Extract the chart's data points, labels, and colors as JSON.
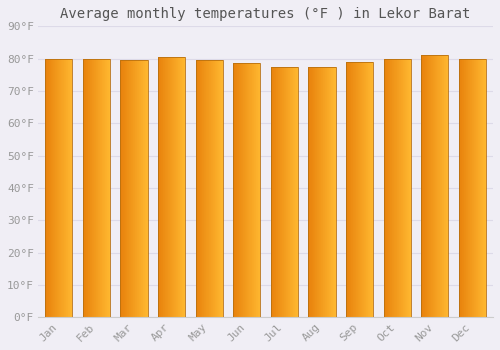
{
  "title": "Average monthly temperatures (°F ) in Lekor Barat",
  "months": [
    "Jan",
    "Feb",
    "Mar",
    "Apr",
    "May",
    "Jun",
    "Jul",
    "Aug",
    "Sep",
    "Oct",
    "Nov",
    "Dec"
  ],
  "values": [
    80,
    80,
    79.5,
    80.5,
    79.5,
    78.5,
    77.5,
    77.5,
    79,
    80,
    81,
    80
  ],
  "ylim": [
    0,
    90
  ],
  "yticks": [
    0,
    10,
    20,
    30,
    40,
    50,
    60,
    70,
    80,
    90
  ],
  "bar_color_left": "#E8820C",
  "bar_color_right": "#FFB830",
  "bar_edge_color": "#B87010",
  "background_color": "#F0EEF5",
  "plot_bg_color": "#F0EEF5",
  "grid_color": "#DDDAE8",
  "title_fontsize": 10,
  "tick_fontsize": 8,
  "title_color": "#555555",
  "tick_color": "#999999"
}
